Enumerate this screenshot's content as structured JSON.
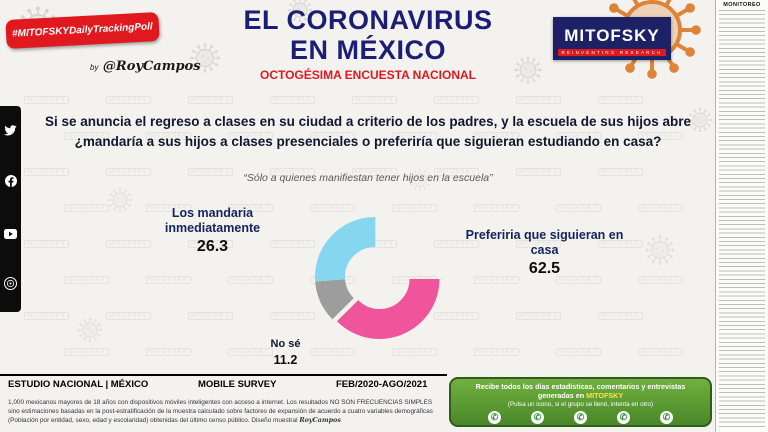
{
  "watermark": "MITOFSKY",
  "badge": {
    "text": "#MITOFSKYDailyTrackingPoll",
    "by": "by",
    "signature": "@RoyCampos"
  },
  "header": {
    "title_line1": "EL CORONAVIRUS",
    "title_line2": "EN MÉXICO",
    "subtitle": "OCTOGÉSIMA ENCUESTA NACIONAL"
  },
  "logo": {
    "name": "MITOFSKY",
    "tagline": "REINVENTING RESEARCH"
  },
  "question": "Si se anuncia el regreso a clases en su ciudad a criterio de los padres, y la escuela de sus hijos abre ¿mandaría a sus hijos a clases presenciales o preferiría que siguieran estudiando en casa?",
  "note": "“Sólo a quienes manifiestan tener hijos en la escuela”",
  "chart_data": {
    "type": "pie",
    "donut": true,
    "segments": [
      {
        "label": "Preferiria que siguieran en casa",
        "value": 62.5,
        "color": "#f0559c",
        "explode": true
      },
      {
        "label": "No sé",
        "value": 11.2,
        "color": "#9d9d9d"
      },
      {
        "label": "Los mandaria inmediatamente",
        "value": 26.3,
        "color": "#85d6ee"
      }
    ]
  },
  "footer": {
    "study": "ESTUDIO NACIONAL | MÉXICO",
    "survey": "MOBILE SURVEY",
    "period": "FEB/2020-AGO/2021",
    "methodology": "1,000 mexicanos mayores de 18 años con dispositivos móviles inteligentes con acceso a internet. Los resultados NO SON FRECUENCIAS SIMPLES sino estimaciones basadas en la post-estratificación de la muestra calculado sobre factores de expansión de acuerdo a cuatro variables demográficas (Población por entidad, sexo, edad y escolaridad) obtenidas del último censo público. Diseño muestral ",
    "designer": "RoyCampos"
  },
  "whatsapp_box": {
    "line1": "Recibe todos los días estadísticas, comentarios y entrevistas",
    "line2_pre": "generadas en ",
    "line2_brand": "MITOFSKY",
    "line3": "(Pulsa un icono, si el grupo se llenó, intenta en otro)",
    "icon_glyph": "✆"
  },
  "monitoreo": {
    "title": "MONITOREO"
  }
}
